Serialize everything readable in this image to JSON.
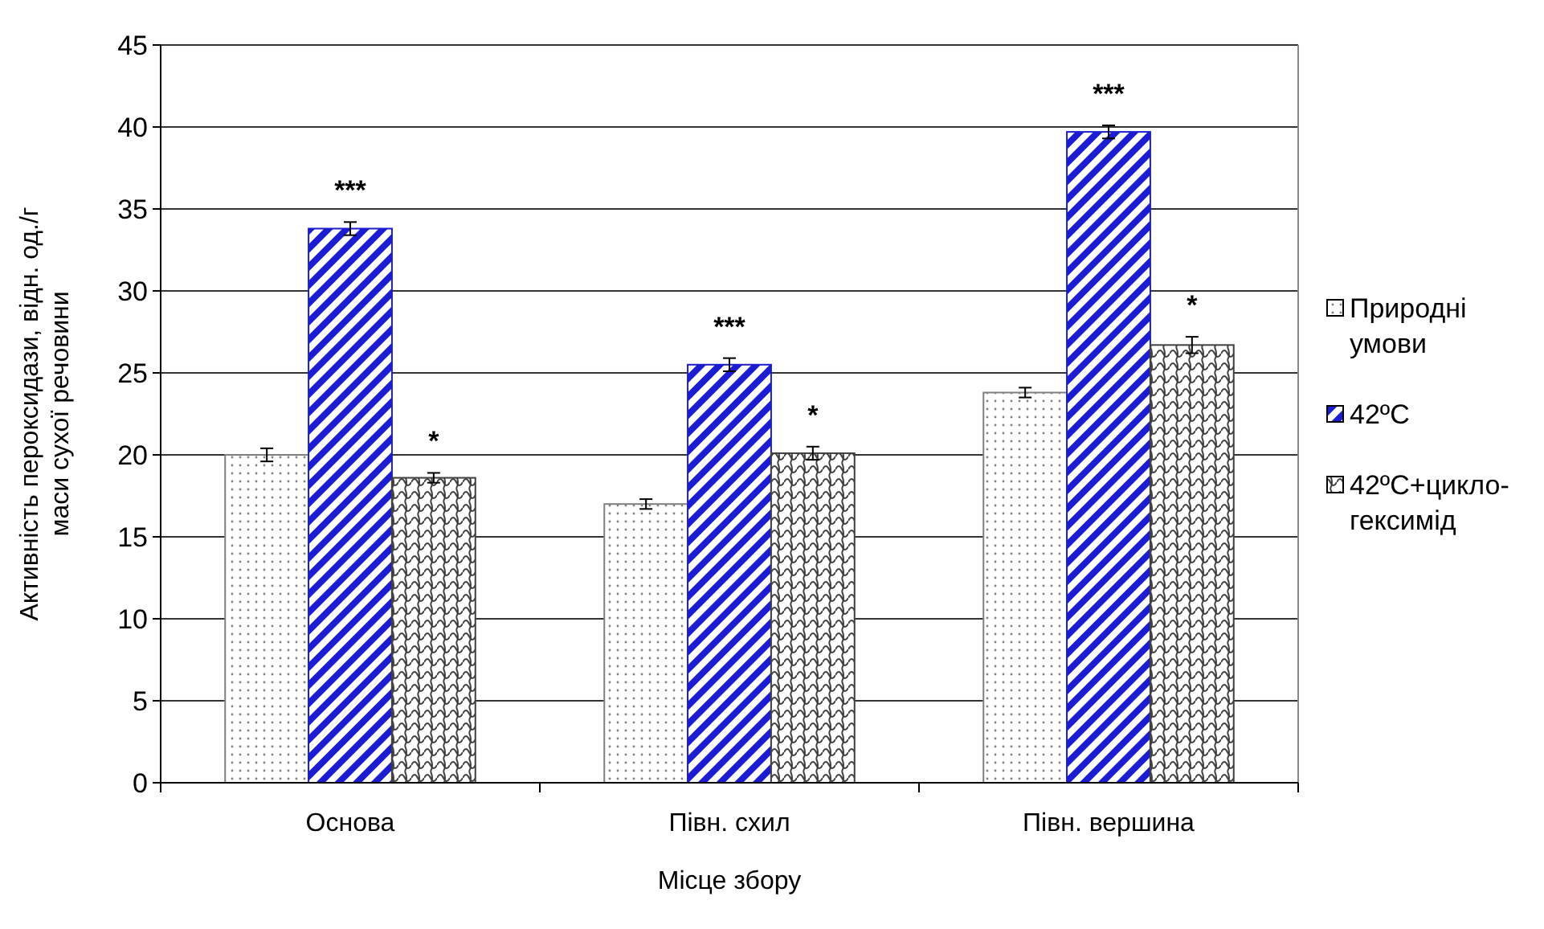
{
  "chart_data": {
    "type": "bar",
    "xlabel": "Місце збору",
    "ylabel": "Активність пероксидази, відн. од./г маси сухої речовини",
    "categories": [
      "Основа",
      "Півн. схил",
      "Півн. вершина"
    ],
    "series": [
      {
        "name": "Природні умови",
        "color": "#808080",
        "values": [
          20.0,
          17.0,
          23.8
        ],
        "errors": [
          0.4,
          0.3,
          0.3
        ]
      },
      {
        "name": "42ºC",
        "color": "#1c1cd0",
        "values": [
          33.8,
          25.5,
          39.7
        ],
        "errors": [
          0.4,
          0.4,
          0.4
        ],
        "value_labels": [
          "***",
          "***",
          "***"
        ]
      },
      {
        "name": "42ºC+цикло-гексимід",
        "color": "#404040",
        "values": [
          18.6,
          20.1,
          26.7
        ],
        "errors": [
          0.3,
          0.4,
          0.5
        ],
        "value_labels": [
          "*",
          "*",
          "*"
        ]
      }
    ],
    "ylim": [
      0,
      45
    ],
    "yticks": [
      0,
      5,
      10,
      15,
      20,
      25,
      30,
      35,
      40,
      45
    ],
    "grid": "y",
    "legend": "right"
  }
}
